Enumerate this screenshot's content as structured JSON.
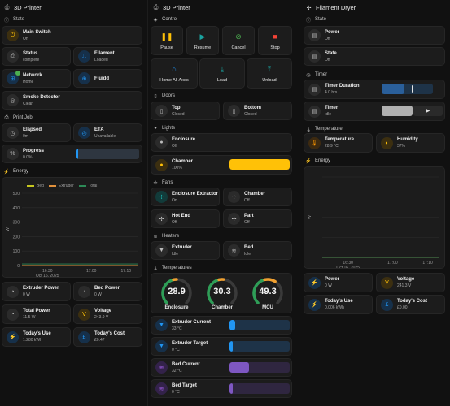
{
  "colors": {
    "accent_blue": "#2196f3",
    "accent_amber": "#ffc107",
    "accent_purple": "#7e57c2",
    "accent_green": "#4caf50",
    "accent_red": "#f44336",
    "accent_teal": "#009688"
  },
  "col1": {
    "title": "3D Printer",
    "state_header": "State",
    "main_switch": {
      "name": "Main Switch",
      "value": "On"
    },
    "status": {
      "name": "Status",
      "value": "complete"
    },
    "filament": {
      "name": "Filament",
      "value": "Loaded"
    },
    "network": {
      "name": "Network",
      "value": "Home"
    },
    "fluidd": {
      "name": "Fluidd"
    },
    "smoke": {
      "name": "Smoke Detector",
      "value": "Clear"
    },
    "printjob_header": "Print Job",
    "elapsed": {
      "name": "Elapsed",
      "value": "0m"
    },
    "eta": {
      "name": "ETA",
      "value": "Unavailable"
    },
    "progress": {
      "name": "Progress",
      "value": "0.0%",
      "fraction": 0.0
    },
    "energy_header": "Energy",
    "extruder_power": {
      "name": "Extruder Power",
      "value": "0 W"
    },
    "bed_power": {
      "name": "Bed Power",
      "value": "0 W"
    },
    "total_power": {
      "name": "Total Power",
      "value": "11.5 W"
    },
    "voltage": {
      "name": "Voltage",
      "value": "243.9 V"
    },
    "todays_use": {
      "name": "Today's Use",
      "value": "1.280 kWh"
    },
    "todays_cost": {
      "name": "Today's Cost",
      "value": "£0.47"
    }
  },
  "col2": {
    "title": "3D Printer",
    "control_header": "Control",
    "controls": [
      {
        "label": "Pause",
        "icon": "pause-icon",
        "glyph": "❚❚",
        "color": "#ffc107"
      },
      {
        "label": "Resume",
        "icon": "play-icon",
        "glyph": "▶",
        "color": "#1aa3a0"
      },
      {
        "label": "Cancel",
        "icon": "cancel-icon",
        "glyph": "⊘",
        "color": "#4caf50"
      },
      {
        "label": "Stop",
        "icon": "stop-icon",
        "glyph": "■",
        "color": "#f44336"
      },
      {
        "label": "Home All Axes",
        "icon": "home-icon",
        "glyph": "⌂",
        "color": "#2196f3"
      },
      {
        "label": "Load",
        "icon": "load-icon",
        "glyph": "⤓",
        "color": "#1aa3a0"
      },
      {
        "label": "Unload",
        "icon": "unload-icon",
        "glyph": "⤒",
        "color": "#1aa3a0"
      }
    ],
    "doors_header": "Doors",
    "top_door": {
      "name": "Top",
      "value": "Closed"
    },
    "bottom_door": {
      "name": "Bottom",
      "value": "Closed"
    },
    "lights_header": "Lights",
    "enclosure_light": {
      "name": "Enclosure",
      "value": "Off"
    },
    "chamber_light": {
      "name": "Chamber",
      "value": "100%",
      "fraction": 1.0
    },
    "fans_header": "Fans",
    "enclosure_extractor": {
      "name": "Enclosure Extractor",
      "value": "On"
    },
    "chamber_fan": {
      "name": "Chamber",
      "value": "Off"
    },
    "hot_end_fan": {
      "name": "Hot End",
      "value": "Off"
    },
    "part_fan": {
      "name": "Part",
      "value": "Off"
    },
    "heaters_header": "Heaters",
    "extruder_heater": {
      "name": "Extruder",
      "value": "Idle"
    },
    "bed_heater": {
      "name": "Bed",
      "value": "Idle"
    },
    "temps_header": "Temperatures",
    "gauges": [
      {
        "label": "Enclosure",
        "value": "28.9",
        "fraction": 0.5
      },
      {
        "label": "Chamber",
        "value": "30.3",
        "fraction": 0.52
      },
      {
        "label": "MCU",
        "value": "49.3",
        "fraction": 0.62
      }
    ],
    "extruder_current": {
      "name": "Extruder Current",
      "value": "33 °C",
      "fraction": 0.1
    },
    "extruder_target": {
      "name": "Extruder Target",
      "value": "0 °C",
      "fraction": 0.06
    },
    "bed_current": {
      "name": "Bed Current",
      "value": "32 °C",
      "fraction": 0.32
    },
    "bed_target": {
      "name": "Bed Target",
      "value": "0 °C",
      "fraction": 0.06
    }
  },
  "col3": {
    "title": "Filament Dryer",
    "state_header": "State",
    "power": {
      "name": "Power",
      "value": "Off"
    },
    "state": {
      "name": "State",
      "value": "Off"
    },
    "timer_header": "Timer",
    "timer_duration": {
      "name": "Timer Duration",
      "value": "4.0 hrs",
      "fraction": 0.45
    },
    "timer": {
      "name": "Timer",
      "value": "Idle"
    },
    "temperature_header": "Temperature",
    "temperature": {
      "name": "Temperature",
      "value": "28.9 °C"
    },
    "humidity": {
      "name": "Humidity",
      "value": "37%"
    },
    "energy_header": "Energy",
    "power_w": {
      "name": "Power",
      "value": "0 W"
    },
    "voltage": {
      "name": "Voltage",
      "value": "241.3 V"
    },
    "todays_use": {
      "name": "Today's Use",
      "value": "0.006 kWh"
    },
    "todays_cost": {
      "name": "Today's Cost",
      "value": "£0.00"
    }
  },
  "chart_data": [
    {
      "type": "line",
      "title": "",
      "xlabel": "",
      "ylabel": "W",
      "ylim": [
        0,
        500
      ],
      "yticks": [
        "0",
        "100",
        "200",
        "300",
        "400",
        "500"
      ],
      "xticks": [
        "16:30\nOct 16, 2025",
        "17:00",
        "17:10"
      ],
      "series": [
        {
          "name": "Bed",
          "color": "#c6c61f",
          "values": [
            0,
            0,
            0,
            0
          ]
        },
        {
          "name": "Extruder",
          "color": "#e0903c",
          "values": [
            0,
            0,
            0,
            0
          ]
        },
        {
          "name": "Total",
          "color": "#2d8a57",
          "values": [
            11,
            11,
            11,
            11
          ]
        }
      ],
      "legend": "top",
      "grid": true
    },
    {
      "type": "line",
      "title": "",
      "xlabel": "",
      "ylabel": "W",
      "ylim": [
        0,
        1
      ],
      "yticks": [],
      "xticks": [
        "16:30\nOct 16, 2025",
        "17:00",
        "17:10"
      ],
      "series": [
        {
          "values": [
            0,
            0,
            0,
            0
          ],
          "color": "#4f8a4f"
        }
      ],
      "grid": true
    }
  ]
}
